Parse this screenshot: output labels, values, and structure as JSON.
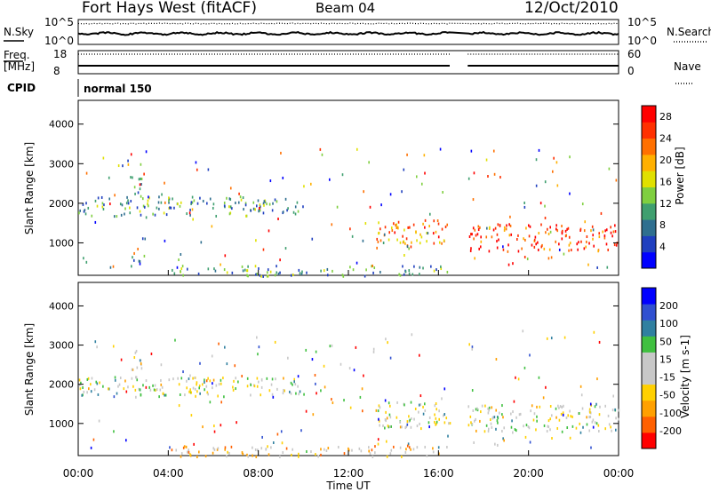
{
  "header": {
    "station": "Fort Hays West (fitACF)",
    "beam": "Beam 04",
    "date": "12/Oct/2010"
  },
  "noise_panel": {
    "left_label": "N.Sky",
    "right_label": "N.Search",
    "left_ticks": [
      "10^5",
      "10^0"
    ],
    "right_ticks": [
      "10^5",
      "10^0"
    ]
  },
  "freq_panel": {
    "left_label_1": "Freq.",
    "left_label_2": "[MHz]",
    "right_label": "Nave",
    "left_ticks": [
      "18",
      "8"
    ],
    "right_ticks": [
      "60",
      "0"
    ]
  },
  "cpid_panel": {
    "label": "CPID",
    "value": "normal 150"
  },
  "x_axis": {
    "label": "Time UT",
    "ticks": [
      "00:00",
      "04:00",
      "08:00",
      "12:00",
      "16:00",
      "20:00",
      "00:00"
    ]
  },
  "colors": {
    "power": [
      "#0000ff",
      "#1f3fbf",
      "#2f6f8f",
      "#3f9f6f",
      "#7fcf3f",
      "#e0e000",
      "#ffb000",
      "#ff7000",
      "#ff3000",
      "#ff0000"
    ],
    "velocity": [
      "#ff0000",
      "#ff6000",
      "#ffa000",
      "#ffd000",
      "#c8c8c8",
      "#c8c8c8",
      "#40c040",
      "#3080a0",
      "#3050d0",
      "#0000ff"
    ]
  },
  "chart_data": [
    {
      "type": "heatmap",
      "title": "",
      "ylabel": "Slant Range [km]",
      "xlabel": "",
      "ylim": [
        180,
        4600
      ],
      "y_ticks": [
        "1000",
        "2000",
        "3000",
        "4000"
      ],
      "colorbar": {
        "label": "Power [dB]",
        "ticks": [
          "4",
          "8",
          "12",
          "16",
          "20",
          "24",
          "28"
        ],
        "range": [
          0,
          30
        ]
      },
      "regions": [
        {
          "t0": 0.0,
          "t1": 10.0,
          "r0": 1700,
          "r1": 2200,
          "value": 10
        },
        {
          "t0": 2.2,
          "t1": 2.8,
          "r0": 2200,
          "r1": 2700,
          "value": 8
        },
        {
          "t0": 13.2,
          "t1": 16.5,
          "r0": 900,
          "r1": 1600,
          "value": 22
        },
        {
          "t0": 17.3,
          "t1": 24.0,
          "r0": 800,
          "r1": 1500,
          "value": 26
        },
        {
          "t0": 2.0,
          "t1": 3.0,
          "r0": 400,
          "r1": 700,
          "value": 8
        },
        {
          "t0": 4.0,
          "t1": 16.5,
          "r0": 180,
          "r1": 450,
          "value": 10
        }
      ]
    },
    {
      "type": "heatmap",
      "title": "",
      "ylabel": "Slant Range [km]",
      "xlabel": "Time UT",
      "ylim": [
        180,
        4600
      ],
      "y_ticks": [
        "1000",
        "2000",
        "3000",
        "4000"
      ],
      "colorbar": {
        "label": "Velocity [m s-1]",
        "ticks": [
          "200",
          "100",
          "50",
          "15",
          "-15",
          "-50",
          "-100",
          "-200"
        ],
        "range": [
          -250,
          250
        ]
      },
      "regions": [
        {
          "t0": 0.0,
          "t1": 10.0,
          "r0": 1700,
          "r1": 2200,
          "value": 0
        },
        {
          "t0": 2.2,
          "t1": 2.8,
          "r0": 2200,
          "r1": 2900,
          "value": -40
        },
        {
          "t0": 13.2,
          "t1": 16.5,
          "r0": 900,
          "r1": 1600,
          "value": 0
        },
        {
          "t0": 17.3,
          "t1": 24.0,
          "r0": 800,
          "r1": 1500,
          "value": 0
        },
        {
          "t0": 4.0,
          "t1": 16.5,
          "r0": 180,
          "r1": 450,
          "value": -60
        }
      ]
    }
  ]
}
